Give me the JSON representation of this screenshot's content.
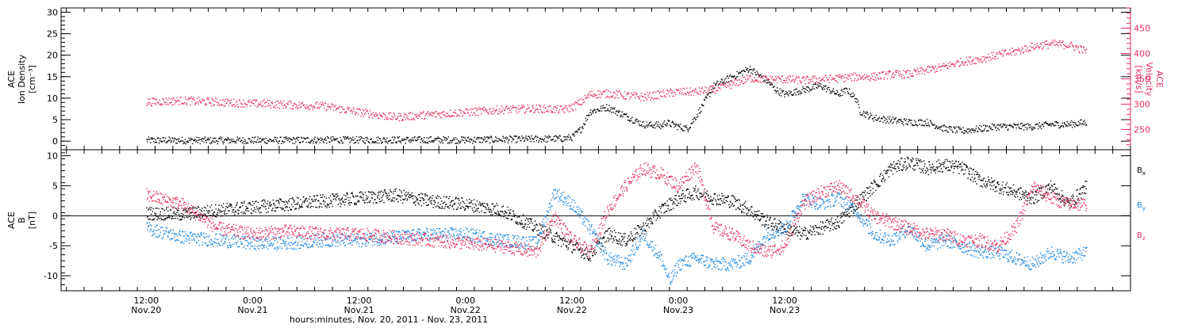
{
  "colors": {
    "black": "#000000",
    "red": "#e8305e",
    "blue": "#1f88e0"
  },
  "footer": {
    "caption": "hours:minutes, Nov. 20, 2011 - Nov. 23, 2011"
  },
  "chart_data": [
    {
      "type": "scatter",
      "panel": "top",
      "left_axis": {
        "label_lines": [
          "ACE",
          "Ion Density",
          "[cm⁻³]"
        ],
        "range": [
          -2,
          31
        ],
        "ticks": [
          0,
          5,
          10,
          15,
          20,
          25,
          30
        ],
        "color": "#000000"
      },
      "right_axis": {
        "label_lines": [
          "ACE",
          "Velocity",
          "[km/s]"
        ],
        "range": [
          210,
          490
        ],
        "ticks": [
          250,
          300,
          350,
          400,
          450
        ],
        "color": "#e8305e"
      },
      "series": [
        {
          "axis": "left",
          "color": "#000000",
          "x": [
            0,
            4,
            8,
            12,
            16,
            20,
            24,
            28,
            32,
            36,
            40,
            44,
            47,
            48,
            49,
            50,
            52,
            54,
            56,
            57,
            57.5,
            58,
            58.5,
            60,
            61,
            62,
            64,
            66,
            68,
            70,
            71,
            72,
            74,
            76,
            78,
            79,
            80,
            80.5,
            82,
            84,
            86,
            88,
            90,
            92,
            94,
            96,
            98,
            100,
            102,
            104,
            106
          ],
          "y": [
            0.3,
            0.3,
            0.3,
            0.3,
            0.3,
            0.4,
            0.4,
            0.4,
            0.4,
            0.4,
            0.5,
            0.6,
            0.7,
            1,
            3,
            7,
            8,
            6,
            4,
            3.8,
            4,
            3.5,
            4.5,
            3.5,
            3,
            6,
            13,
            15,
            17,
            14,
            12,
            11,
            12,
            13,
            11,
            12,
            10,
            7,
            5.5,
            5,
            4.5,
            4.5,
            3,
            2.5,
            3,
            3.5,
            3.5,
            3.5,
            4,
            4,
            4.5
          ]
        },
        {
          "axis": "right",
          "color": "#e8305e",
          "x": [
            0,
            4,
            8,
            12,
            16,
            20,
            24,
            28,
            32,
            36,
            40,
            44,
            47,
            48,
            49,
            50,
            52,
            54,
            56,
            58,
            60,
            62,
            64,
            66,
            68,
            70,
            72,
            74,
            76,
            78,
            80,
            82,
            84,
            86,
            88,
            90,
            92,
            94,
            96,
            98,
            100,
            102,
            104,
            106
          ],
          "y": [
            305,
            308,
            305,
            302,
            300,
            297,
            285,
            275,
            280,
            285,
            290,
            292,
            290,
            295,
            305,
            320,
            322,
            318,
            315,
            320,
            325,
            325,
            330,
            340,
            352,
            350,
            350,
            348,
            350,
            352,
            355,
            355,
            360,
            360,
            368,
            375,
            385,
            390,
            398,
            405,
            415,
            420,
            418,
            405
          ]
        }
      ]
    },
    {
      "type": "scatter",
      "panel": "bottom",
      "left_axis": {
        "label_lines": [
          "ACE",
          "B",
          "[nT]"
        ],
        "range": [
          -12.5,
          11
        ],
        "ticks": [
          -10,
          -5,
          0,
          5,
          10
        ],
        "color": "#000000"
      },
      "legend": [
        {
          "label": "B",
          "sub": "x",
          "color": "#000000"
        },
        {
          "label": "B",
          "sub": "y",
          "color": "#1f88e0"
        },
        {
          "label": "B",
          "sub": "z",
          "color": "#e8305e"
        }
      ],
      "legend_placement": "right",
      "zero_line": true,
      "series": [
        {
          "name": "Bx",
          "color": "#000000",
          "x": [
            0,
            4,
            8,
            12,
            16,
            20,
            24,
            28,
            32,
            36,
            40,
            44,
            48,
            50,
            52,
            54,
            56,
            58,
            60,
            62,
            64,
            66,
            68,
            70,
            72,
            74,
            76,
            78,
            80,
            82,
            84,
            86,
            88,
            90,
            92,
            94,
            96,
            98,
            100,
            102,
            104,
            106
          ],
          "y": [
            0.5,
            0.3,
            1,
            1.5,
            2,
            2.5,
            3,
            3.5,
            2.5,
            2,
            1,
            -2,
            -5,
            -6.5,
            -3,
            -4,
            -2,
            1,
            3,
            4,
            3,
            2.5,
            1,
            -1,
            -2,
            -3,
            -2,
            -1,
            2,
            5,
            8,
            9,
            8,
            8.5,
            8,
            6,
            5,
            4,
            3,
            5,
            2,
            5
          ]
        },
        {
          "name": "By",
          "color": "#1f88e0",
          "x": [
            0,
            4,
            8,
            12,
            16,
            20,
            24,
            28,
            32,
            36,
            40,
            44,
            46,
            48,
            50,
            52,
            54,
            56,
            58,
            59,
            60,
            62,
            64,
            66,
            68,
            70,
            72,
            74,
            76,
            78,
            80,
            82,
            84,
            86,
            88,
            90,
            92,
            94,
            96,
            98,
            100,
            102,
            104,
            106
          ],
          "y": [
            -2,
            -3.5,
            -4,
            -4.5,
            -4.5,
            -4,
            -4,
            -3.5,
            -3,
            -3,
            -4,
            -4.5,
            4,
            2,
            -2,
            -7,
            -8,
            -3,
            -7,
            -11,
            -8,
            -7,
            -8,
            -8,
            -7,
            -3,
            -2,
            3,
            2,
            3,
            1,
            -3,
            -4,
            -2,
            -5,
            -4,
            -5,
            -6,
            -6,
            -7,
            -8,
            -6,
            -7,
            -6
          ]
        },
        {
          "name": "Bz",
          "color": "#e8305e",
          "x": [
            0,
            4,
            6,
            8,
            12,
            16,
            20,
            24,
            28,
            32,
            36,
            40,
            44,
            46,
            48,
            50,
            52,
            54,
            56,
            58,
            60,
            62,
            64,
            66,
            68,
            70,
            72,
            74,
            76,
            78,
            80,
            82,
            84,
            86,
            88,
            90,
            92,
            94,
            96,
            98,
            100,
            102,
            104,
            106
          ],
          "y": [
            3.5,
            2,
            0,
            -2,
            -3,
            -2.5,
            -3,
            -3,
            -3.5,
            -4,
            -4.5,
            -5,
            -6,
            0,
            -4,
            -6,
            1,
            5,
            8,
            7,
            5,
            8.5,
            -2,
            -3,
            -5,
            -6,
            -5,
            2,
            4,
            5,
            3,
            0,
            -1,
            -2,
            -3,
            -3,
            -4,
            -4,
            -5,
            -2,
            5,
            3,
            2,
            2
          ]
        }
      ]
    }
  ],
  "time_axis": {
    "range_hours": [
      -9.6,
      111
    ],
    "ticks": [
      {
        "h": 0,
        "time": "12:00",
        "date": "Nov.20"
      },
      {
        "h": 12,
        "time": "0:00",
        "date": "Nov.21"
      },
      {
        "h": 24,
        "time": "12:00",
        "date": "Nov.21"
      },
      {
        "h": 36,
        "time": "0:00",
        "date": "Nov.22"
      },
      {
        "h": 48,
        "time": "12:00",
        "date": "Nov.22"
      },
      {
        "h": 60,
        "time": "0:00",
        "date": "Nov.23"
      },
      {
        "h": 72,
        "time": "12:00",
        "date": "Nov.23"
      }
    ]
  }
}
